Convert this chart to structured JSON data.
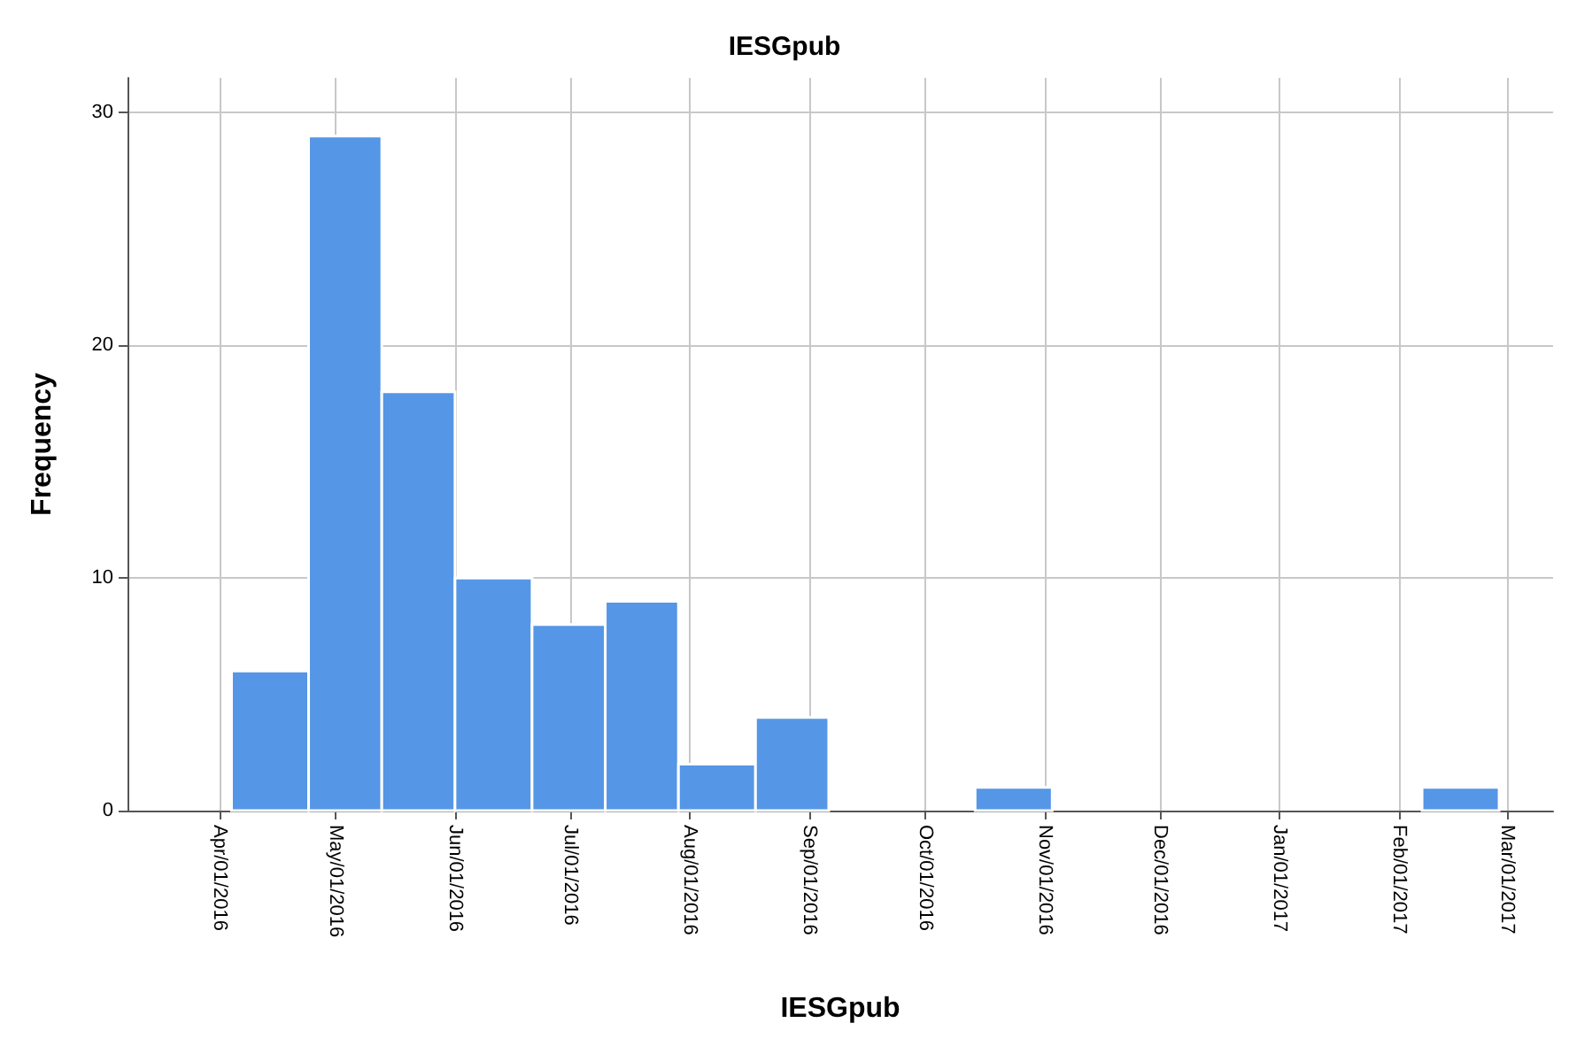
{
  "chart_data": {
    "type": "histogram",
    "title": "IESGpub",
    "xlabel": "IESGpub",
    "ylabel": "Frequency",
    "bins": [
      "2016-04-04",
      "2016-04-24",
      "2016-05-13",
      "2016-06-01",
      "2016-06-21",
      "2016-07-10",
      "2016-07-29",
      "2016-08-18",
      "2016-09-06",
      "2016-10-14",
      "2016-11-03",
      "2017-02-07",
      "2017-02-27"
    ],
    "values": [
      6,
      29,
      18,
      10,
      8,
      9,
      2,
      4,
      0,
      1,
      0,
      1
    ],
    "color": "#5596e6",
    "xlim": [
      "2016-03-08",
      "2017-03-13"
    ],
    "xticks": [
      {
        "value": "2016-04-01",
        "label": "Apr/01/2016"
      },
      {
        "value": "2016-05-01",
        "label": "May/01/2016"
      },
      {
        "value": "2016-06-01",
        "label": "Jun/01/2016"
      },
      {
        "value": "2016-07-01",
        "label": "Jul/01/2016"
      },
      {
        "value": "2016-08-01",
        "label": "Aug/01/2016"
      },
      {
        "value": "2016-09-01",
        "label": "Sep/01/2016"
      },
      {
        "value": "2016-10-01",
        "label": "Oct/01/2016"
      },
      {
        "value": "2016-11-01",
        "label": "Nov/01/2016"
      },
      {
        "value": "2016-12-01",
        "label": "Dec/01/2016"
      },
      {
        "value": "2017-01-01",
        "label": "Jan/01/2017"
      },
      {
        "value": "2017-02-01",
        "label": "Feb/01/2017"
      },
      {
        "value": "2017-03-01",
        "label": "Mar/01/2017"
      }
    ],
    "ylim": [
      0,
      31.5
    ],
    "yticks": [
      0,
      10,
      20,
      30
    ],
    "grid": true
  }
}
